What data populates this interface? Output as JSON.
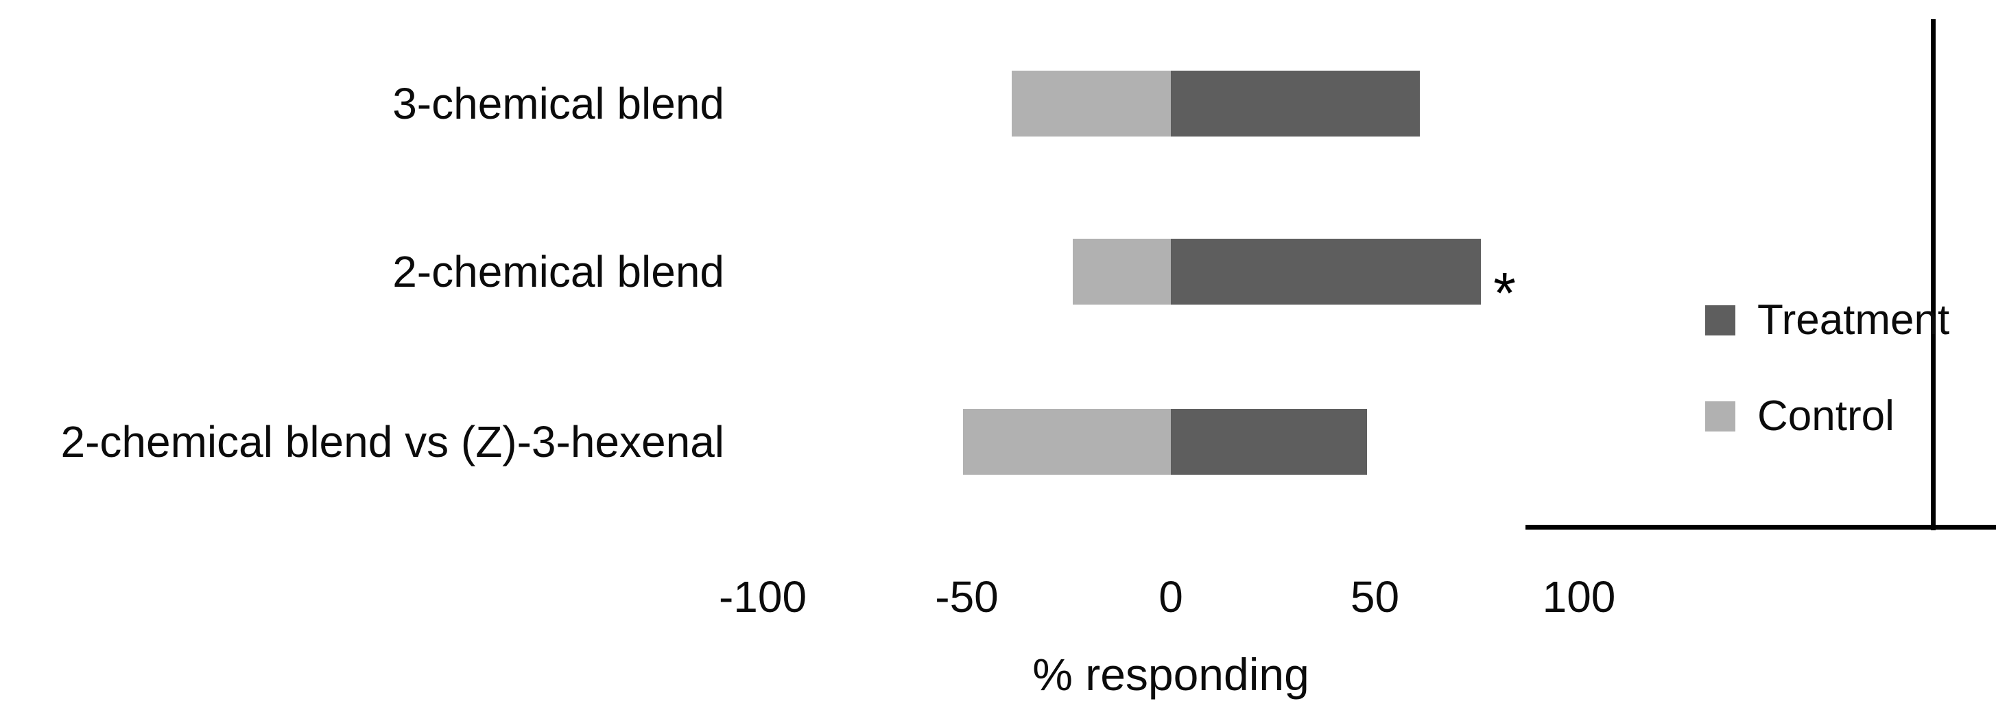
{
  "figure": {
    "background": "#ffffff",
    "axis_color": "#000000"
  },
  "chart_data": {
    "type": "bar",
    "orientation": "horizontal",
    "diverging": true,
    "title": "",
    "xlabel": "% responding",
    "xlim": [
      -100,
      100
    ],
    "xticks": [
      -100,
      -50,
      0,
      50,
      100
    ],
    "grid": false,
    "categories": [
      "3-chemical blend",
      "2-chemical blend",
      "2-chemical blend vs (Z)-3-hexenal"
    ],
    "series": [
      {
        "name": "Treatment",
        "color": "#5e5e5e",
        "values": [
          61,
          76,
          48
        ]
      },
      {
        "name": "Control",
        "color": "#b1b1b1",
        "values": [
          -39,
          -24,
          -51
        ]
      }
    ],
    "annotations": [
      {
        "category_index": 1,
        "series": "Treatment",
        "text": "*"
      }
    ],
    "legend": {
      "position": "right",
      "entries": [
        "Treatment",
        "Control"
      ]
    }
  }
}
